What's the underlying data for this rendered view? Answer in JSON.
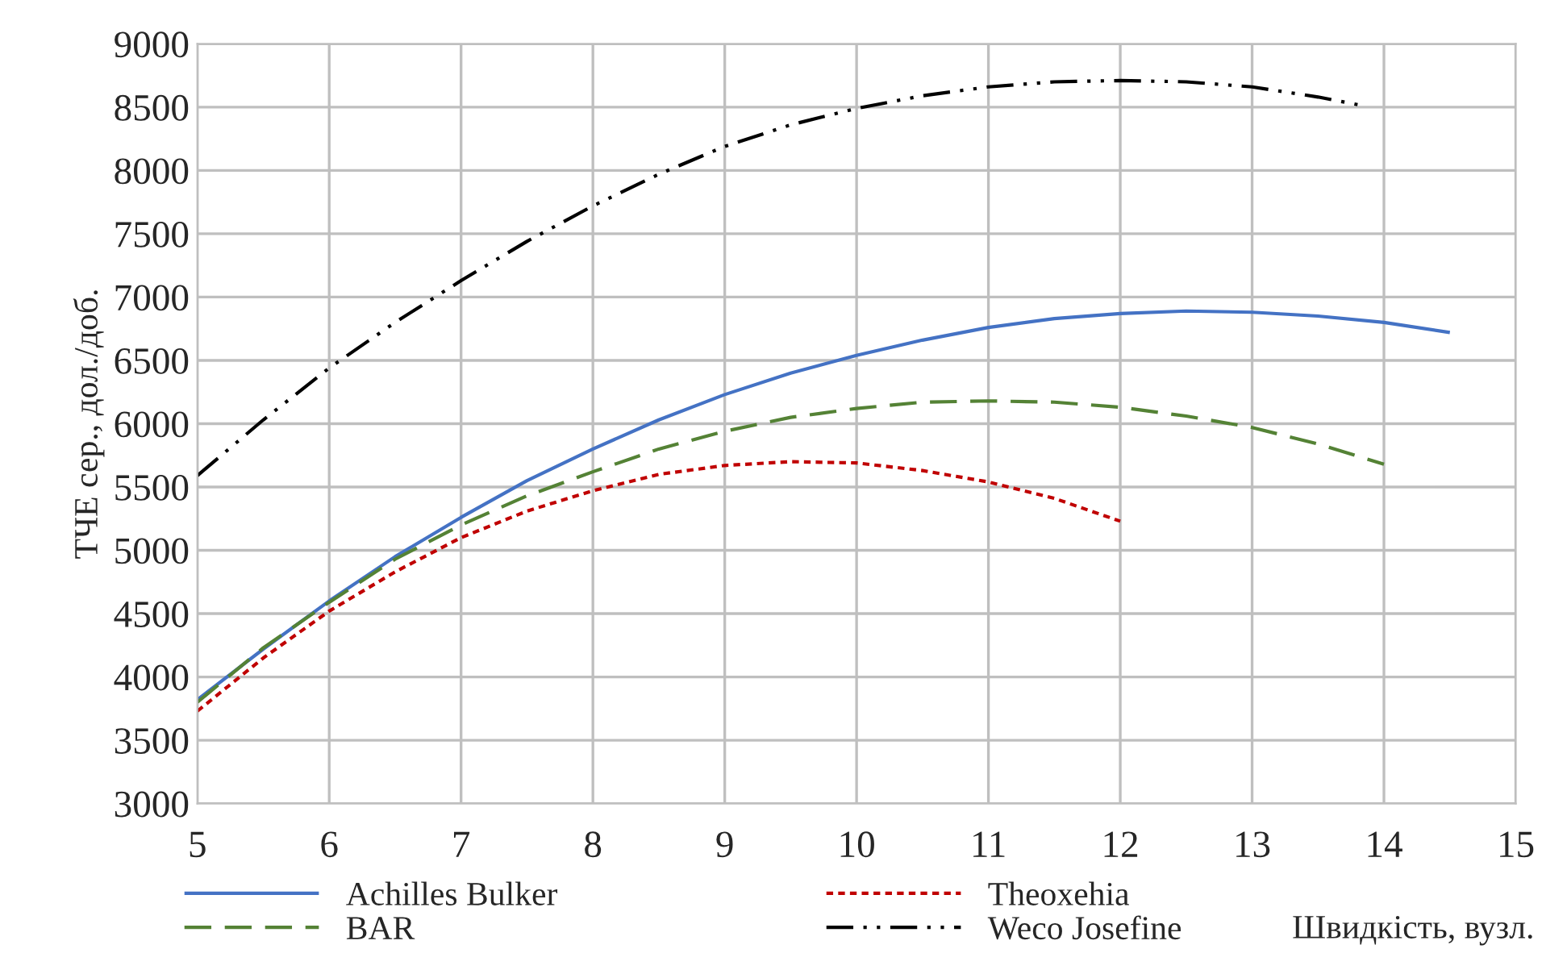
{
  "chart_data": {
    "type": "line",
    "xlabel": "Швидкість, вузл.",
    "ylabel": "ТЧЕ сер., дол./доб.",
    "xlim": [
      5,
      15
    ],
    "xticks": [
      5,
      6,
      7,
      8,
      9,
      10,
      11,
      12,
      13,
      14,
      15
    ],
    "ylim": [
      3000,
      9000
    ],
    "yticks": [
      3000,
      3500,
      4000,
      4500,
      5000,
      5500,
      6000,
      6500,
      7000,
      7500,
      8000,
      8500,
      9000
    ],
    "grid": true,
    "legend": "bottom",
    "marker": "none",
    "series": [
      {
        "name": "Achilles Bulker",
        "color": "#4472c4",
        "line_style": "solid",
        "x": [
          5,
          5.5,
          6,
          6.5,
          7,
          7.5,
          8,
          8.5,
          9,
          9.5,
          10,
          10.5,
          11,
          11.5,
          12,
          12.5,
          13,
          13.5,
          14,
          14.5
        ],
        "values": [
          3820,
          4220,
          4600,
          4950,
          5260,
          5550,
          5800,
          6030,
          6230,
          6400,
          6540,
          6660,
          6760,
          6830,
          6870,
          6890,
          6880,
          6850,
          6800,
          6720
        ]
      },
      {
        "name": "BAR",
        "color": "#548235",
        "line_style": "dashed",
        "x": [
          5,
          5.5,
          6,
          6.5,
          7,
          7.5,
          8,
          8.5,
          9,
          9.5,
          10,
          10.5,
          11,
          11.5,
          12,
          12.5,
          13,
          13.5,
          14
        ],
        "values": [
          3800,
          4230,
          4590,
          4930,
          5200,
          5430,
          5620,
          5800,
          5940,
          6050,
          6120,
          6170,
          6180,
          6170,
          6130,
          6060,
          5970,
          5840,
          5680
        ]
      },
      {
        "name": "Theoxehia",
        "color": "#c00000",
        "line_style": "dotted",
        "x": [
          5,
          5.5,
          6,
          6.5,
          7,
          7.5,
          8,
          8.5,
          9,
          9.5,
          10,
          10.5,
          11,
          11.5,
          12
        ],
        "values": [
          3730,
          4150,
          4520,
          4830,
          5100,
          5310,
          5470,
          5600,
          5670,
          5700,
          5690,
          5630,
          5540,
          5410,
          5230
        ]
      },
      {
        "name": "Weco Josefine",
        "color": "#000000",
        "line_style": "dashdot",
        "x": [
          5,
          5.5,
          6,
          6.5,
          7,
          7.5,
          8,
          8.5,
          9,
          9.5,
          10,
          10.5,
          11,
          11.5,
          12,
          12.5,
          13,
          13.5,
          13.8
        ],
        "values": [
          5590,
          6030,
          6440,
          6800,
          7130,
          7440,
          7720,
          7970,
          8190,
          8360,
          8490,
          8590,
          8660,
          8700,
          8710,
          8700,
          8660,
          8580,
          8520
        ]
      }
    ]
  }
}
